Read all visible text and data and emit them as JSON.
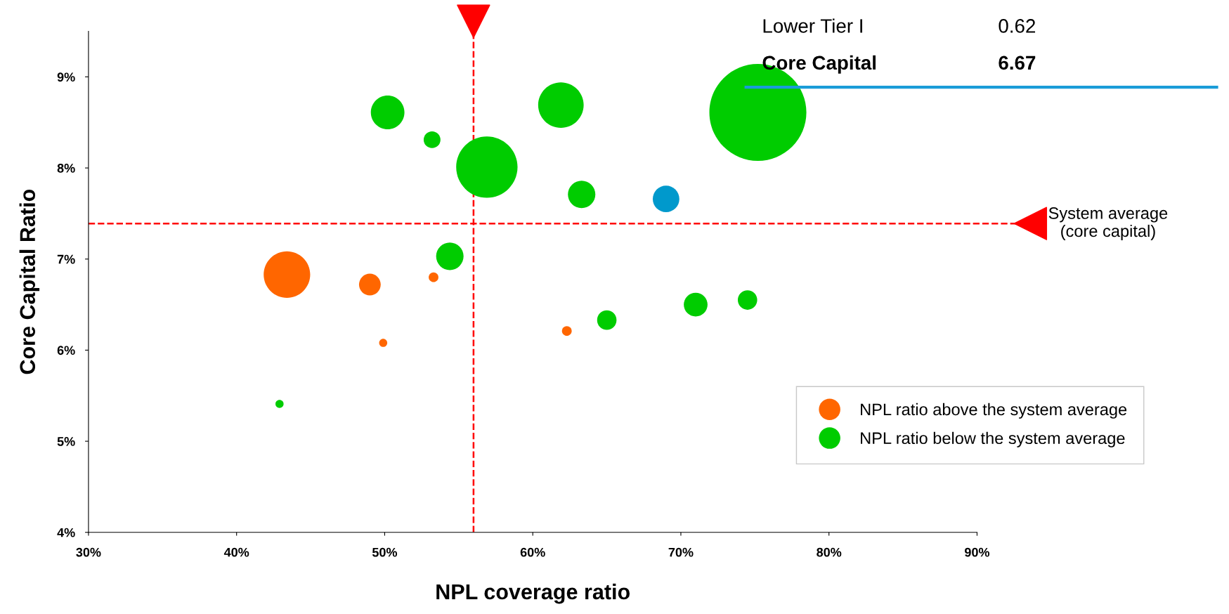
{
  "chart_data": {
    "type": "bubble",
    "xlabel": "NPL coverage ratio",
    "ylabel": "Core Capital Ratio",
    "xlim": [
      30,
      90
    ],
    "ylim": [
      4,
      9.5
    ],
    "xticks": [
      {
        "value": 30,
        "label": "30%"
      },
      {
        "value": 40,
        "label": "40%"
      },
      {
        "value": 50,
        "label": "50%"
      },
      {
        "value": 60,
        "label": "60%"
      },
      {
        "value": 70,
        "label": "70%"
      },
      {
        "value": 80,
        "label": "80%"
      },
      {
        "value": 90,
        "label": "90%"
      }
    ],
    "yticks": [
      {
        "value": 4,
        "label": "4%"
      },
      {
        "value": 5,
        "label": "5%"
      },
      {
        "value": 6,
        "label": "6%"
      },
      {
        "value": 7,
        "label": "7%"
      },
      {
        "value": 8,
        "label": "8%"
      },
      {
        "value": 9,
        "label": "9%"
      }
    ],
    "grid": false,
    "legend": "bottom right",
    "series": [
      {
        "name": "NPL ratio above the system average",
        "color": "#ff6600",
        "x": [
          43.4,
          49.0,
          53.3,
          49.9,
          62.3
        ],
        "values": [
          6.83,
          6.72,
          6.8,
          6.08,
          6.21
        ],
        "sizes": [
          0.23,
          0.05,
          0.01,
          0.007,
          0.01
        ]
      },
      {
        "name": "NPL ratio below the system average",
        "color": "#00cc00",
        "x": [
          50.2,
          53.2,
          56.9,
          61.9,
          63.3,
          75.2,
          54.4,
          65.0,
          71.0,
          74.5,
          42.9
        ],
        "values": [
          8.61,
          8.31,
          8.01,
          8.69,
          7.71,
          8.61,
          7.03,
          6.33,
          6.5,
          6.55,
          5.41
        ],
        "sizes": [
          0.12,
          0.03,
          0.4,
          0.22,
          0.08,
          1,
          0.08,
          0.04,
          0.06,
          0.04,
          0.007
        ]
      },
      {
        "color": "#0099cc",
        "x": [
          69.0
        ],
        "values": [
          7.66
        ],
        "sizes": [
          0.075
        ]
      }
    ],
    "ref_lines": [
      {
        "axis": "x",
        "value": 56,
        "color": "#ff0000",
        "line_style": "dashed"
      },
      {
        "axis": "y",
        "value": 7.39,
        "color": "#ff0000",
        "line_style": "dashed",
        "label": "System average\n(core capital)"
      }
    ],
    "annotations": [
      "Lower Tier I",
      "0.62",
      "Core Capital",
      "6.67"
    ]
  }
}
